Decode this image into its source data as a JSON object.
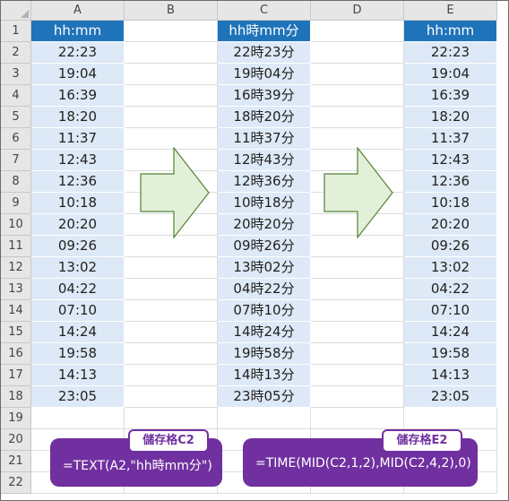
{
  "columns": [
    "A",
    "B",
    "C",
    "D",
    "E"
  ],
  "rows": [
    "1",
    "2",
    "3",
    "4",
    "5",
    "6",
    "7",
    "8",
    "9",
    "10",
    "11",
    "12",
    "13",
    "14",
    "15",
    "16",
    "17",
    "18",
    "19",
    "20",
    "21",
    "22"
  ],
  "headers": {
    "A": "hh:mm",
    "C": "hh時mm分",
    "E": "hh:mm"
  },
  "col_a_values": [
    "22:23",
    "19:04",
    "16:39",
    "18:20",
    "11:37",
    "12:43",
    "12:36",
    "10:18",
    "20:20",
    "09:26",
    "13:02",
    "04:22",
    "07:10",
    "14:24",
    "19:58",
    "14:13",
    "23:05"
  ],
  "col_c_values": [
    "22時23分",
    "19時04分",
    "16時39分",
    "18時20分",
    "11時37分",
    "12時43分",
    "12時36分",
    "10時18分",
    "20時20分",
    "09時26分",
    "13時02分",
    "04時22分",
    "07時10分",
    "14時24分",
    "19時58分",
    "14時13分",
    "23時05分"
  ],
  "col_e_values": [
    "22:23",
    "19:04",
    "16:39",
    "18:20",
    "11:37",
    "12:43",
    "12:36",
    "10:18",
    "20:20",
    "09:26",
    "13:02",
    "04:22",
    "07:10",
    "14:24",
    "19:58",
    "14:13",
    "23:05"
  ],
  "callouts": {
    "left": {
      "tag": "儲存格C2",
      "formula": "=TEXT(A2,\"hh時mm分\")"
    },
    "right": {
      "tag": "儲存格E2",
      "formula": "=TIME(MID(C2,1,2),MID(C2,4,2),0)"
    }
  },
  "colors": {
    "header_fill": "#1f73b9",
    "data_fill": "#dde9f6",
    "arrow_fill": "#e2f0d9",
    "arrow_stroke": "#548235",
    "callout_fill": "#7030a0"
  },
  "icons": [
    "right-arrow-shape",
    "select-all-corner-icon"
  ]
}
